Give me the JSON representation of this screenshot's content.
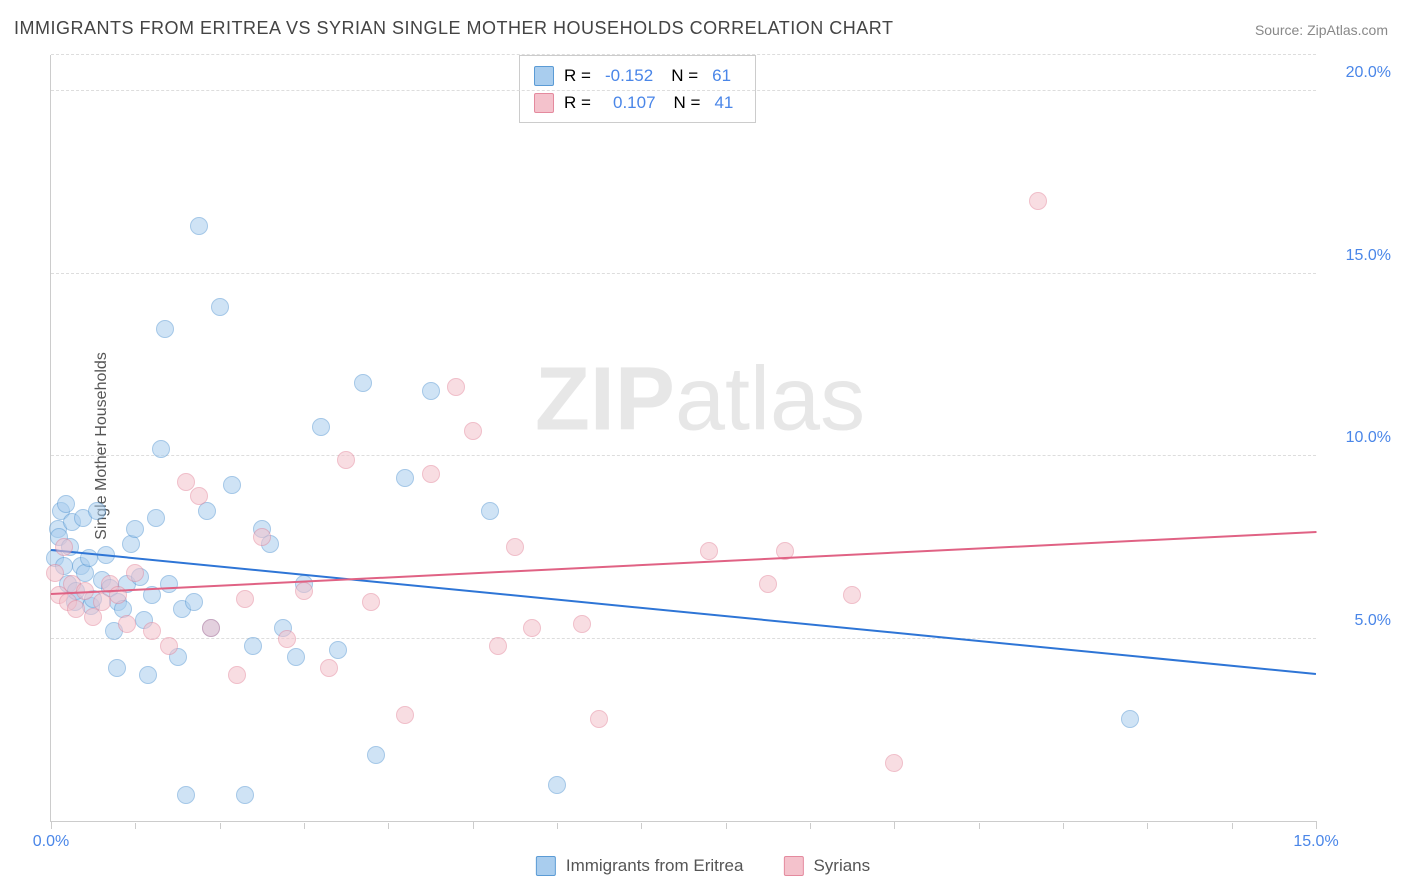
{
  "title": "IMMIGRANTS FROM ERITREA VS SYRIAN SINGLE MOTHER HOUSEHOLDS CORRELATION CHART",
  "source_label": "Source: ZipAtlas.com",
  "y_axis_label": "Single Mother Households",
  "watermark_bold": "ZIP",
  "watermark_light": "atlas",
  "chart": {
    "type": "scatter",
    "xlim": [
      0,
      15
    ],
    "ylim": [
      0,
      21
    ],
    "x_ticks": [
      0,
      5,
      10,
      15
    ],
    "x_tick_labels": [
      "0.0%",
      "",
      "",
      "15.0%"
    ],
    "y_ticks": [
      5,
      10,
      15,
      20
    ],
    "y_tick_labels": [
      "5.0%",
      "10.0%",
      "15.0%",
      "20.0%"
    ],
    "grid_color": "#dddddd",
    "background_color": "#ffffff",
    "marker_radius": 9,
    "marker_opacity": 0.55,
    "series": [
      {
        "name": "Immigrants from Eritrea",
        "color_fill": "#a9cdee",
        "color_stroke": "#5b9bd5",
        "trend_color": "#2e75d6",
        "R": "-0.152",
        "N": "61",
        "trend": {
          "x1": 0,
          "y1": 7.4,
          "x2": 15,
          "y2": 4.0
        },
        "points": [
          [
            0.05,
            7.2
          ],
          [
            0.08,
            8.0
          ],
          [
            0.1,
            7.8
          ],
          [
            0.12,
            8.5
          ],
          [
            0.15,
            7.0
          ],
          [
            0.18,
            8.7
          ],
          [
            0.2,
            6.5
          ],
          [
            0.22,
            7.5
          ],
          [
            0.25,
            8.2
          ],
          [
            0.28,
            6.0
          ],
          [
            0.3,
            6.3
          ],
          [
            0.35,
            7.0
          ],
          [
            0.38,
            8.3
          ],
          [
            0.4,
            6.8
          ],
          [
            0.45,
            7.2
          ],
          [
            0.48,
            5.9
          ],
          [
            0.5,
            6.1
          ],
          [
            0.55,
            8.5
          ],
          [
            0.6,
            6.6
          ],
          [
            0.65,
            7.3
          ],
          [
            0.7,
            6.4
          ],
          [
            0.75,
            5.2
          ],
          [
            0.78,
            4.2
          ],
          [
            0.8,
            6.0
          ],
          [
            0.85,
            5.8
          ],
          [
            0.9,
            6.5
          ],
          [
            0.95,
            7.6
          ],
          [
            1.0,
            8.0
          ],
          [
            1.05,
            6.7
          ],
          [
            1.1,
            5.5
          ],
          [
            1.15,
            4.0
          ],
          [
            1.2,
            6.2
          ],
          [
            1.25,
            8.3
          ],
          [
            1.3,
            10.2
          ],
          [
            1.35,
            13.5
          ],
          [
            1.4,
            6.5
          ],
          [
            1.5,
            4.5
          ],
          [
            1.55,
            5.8
          ],
          [
            1.6,
            0.7
          ],
          [
            1.7,
            6.0
          ],
          [
            1.75,
            16.3
          ],
          [
            1.85,
            8.5
          ],
          [
            1.9,
            5.3
          ],
          [
            2.0,
            14.1
          ],
          [
            2.15,
            9.2
          ],
          [
            2.3,
            0.7
          ],
          [
            2.4,
            4.8
          ],
          [
            2.5,
            8.0
          ],
          [
            2.6,
            7.6
          ],
          [
            2.75,
            5.3
          ],
          [
            2.9,
            4.5
          ],
          [
            3.0,
            6.5
          ],
          [
            3.2,
            10.8
          ],
          [
            3.4,
            4.7
          ],
          [
            3.7,
            12.0
          ],
          [
            3.85,
            1.8
          ],
          [
            4.2,
            9.4
          ],
          [
            4.5,
            11.8
          ],
          [
            5.2,
            8.5
          ],
          [
            6.0,
            1.0
          ],
          [
            12.8,
            2.8
          ]
        ]
      },
      {
        "name": "Syrians",
        "color_fill": "#f4c2cc",
        "color_stroke": "#e48a9e",
        "trend_color": "#e06284",
        "R": "0.107",
        "N": "41",
        "trend": {
          "x1": 0,
          "y1": 6.2,
          "x2": 15,
          "y2": 7.9
        },
        "points": [
          [
            0.05,
            6.8
          ],
          [
            0.1,
            6.2
          ],
          [
            0.15,
            7.5
          ],
          [
            0.2,
            6.0
          ],
          [
            0.25,
            6.5
          ],
          [
            0.3,
            5.8
          ],
          [
            0.4,
            6.3
          ],
          [
            0.5,
            5.6
          ],
          [
            0.6,
            6.0
          ],
          [
            0.7,
            6.5
          ],
          [
            0.8,
            6.2
          ],
          [
            0.9,
            5.4
          ],
          [
            1.0,
            6.8
          ],
          [
            1.2,
            5.2
          ],
          [
            1.4,
            4.8
          ],
          [
            1.6,
            9.3
          ],
          [
            1.75,
            8.9
          ],
          [
            1.9,
            5.3
          ],
          [
            2.2,
            4.0
          ],
          [
            2.3,
            6.1
          ],
          [
            2.5,
            7.8
          ],
          [
            2.8,
            5.0
          ],
          [
            3.0,
            6.3
          ],
          [
            3.3,
            4.2
          ],
          [
            3.5,
            9.9
          ],
          [
            3.8,
            6.0
          ],
          [
            4.2,
            2.9
          ],
          [
            4.5,
            9.5
          ],
          [
            4.8,
            11.9
          ],
          [
            5.0,
            10.7
          ],
          [
            5.5,
            7.5
          ],
          [
            5.7,
            5.3
          ],
          [
            6.3,
            5.4
          ],
          [
            6.5,
            2.8
          ],
          [
            7.8,
            7.4
          ],
          [
            8.5,
            6.5
          ],
          [
            8.7,
            7.4
          ],
          [
            9.5,
            6.2
          ],
          [
            10.0,
            1.6
          ],
          [
            11.7,
            17.0
          ],
          [
            5.3,
            4.8
          ]
        ]
      }
    ]
  },
  "stats_legend_prefix_R": "R =",
  "stats_legend_prefix_N": "N ="
}
